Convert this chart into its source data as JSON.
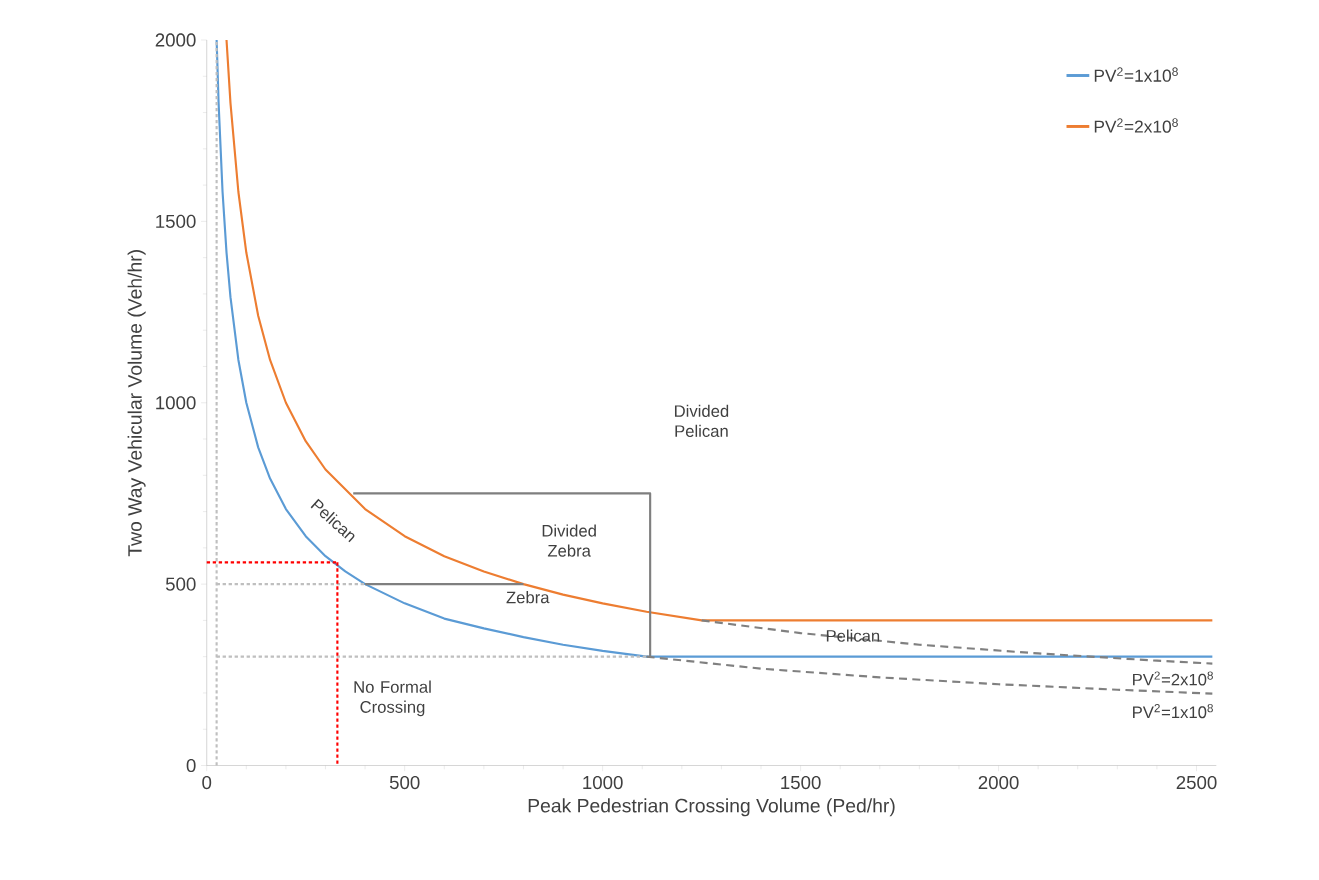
{
  "chart_data": {
    "type": "line",
    "xlabel": "Peak Pedestrian Crossing Volume (Ped/hr)",
    "ylabel": "Two Way Vehicular Volume (Veh/hr)",
    "xlim": [
      0,
      2550
    ],
    "ylim": [
      0,
      2000
    ],
    "xticks": [
      0,
      500,
      1000,
      1500,
      2000,
      2500
    ],
    "yticks": [
      0,
      500,
      1000,
      1500,
      2000
    ],
    "grid": false,
    "legend": "top right",
    "marker": "none",
    "series": [
      {
        "name": "PV$^{2}$=1x10$^{8}$",
        "color": "#5b9bd5",
        "line_style": "solid",
        "x": [
          25,
          30,
          40,
          50,
          60,
          80,
          100,
          130,
          160,
          200,
          250,
          300,
          350,
          400,
          500,
          600,
          700,
          800,
          900,
          1000,
          1111,
          2540
        ],
        "values": [
          2000,
          1826,
          1581,
          1414,
          1291,
          1118,
          1000,
          877,
          791,
          707,
          632,
          577,
          535,
          500,
          447,
          405,
          378,
          354,
          333,
          316,
          300,
          300
        ]
      },
      {
        "name": "PV$^{2}$=2x10$^{8}$",
        "color": "#ed7d31",
        "line_style": "solid",
        "x": [
          50,
          60,
          80,
          100,
          130,
          160,
          200,
          250,
          300,
          400,
          500,
          600,
          700,
          800,
          900,
          1000,
          1111,
          1250,
          2540
        ],
        "values": [
          2000,
          1826,
          1581,
          1414,
          1240,
          1118,
          1000,
          894,
          816,
          707,
          632,
          577,
          535,
          500,
          471,
          447,
          424,
          400,
          400
        ]
      },
      {
        "color": "#808080",
        "line_style": "dashed",
        "x": [
          1111,
          1400,
          1700,
          2000,
          2300,
          2540
        ],
        "values": [
          300,
          267,
          243,
          224,
          209,
          198
        ]
      },
      {
        "color": "#808080",
        "line_style": "dashed",
        "x": [
          1250,
          1500,
          1800,
          2100,
          2400,
          2540
        ],
        "values": [
          400,
          365,
          333,
          309,
          289,
          281
        ]
      },
      {
        "color": "#7f7f7f",
        "line_style": "solid",
        "x": [
          370,
          1120,
          1120
        ],
        "values": [
          750,
          750,
          300
        ]
      },
      {
        "color": "#7f7f7f",
        "line_style": "solid",
        "x": [
          400,
          800
        ],
        "values": [
          500,
          500
        ]
      },
      {
        "color": "#bfbfbf",
        "line_style": "dotted",
        "x": [
          25,
          400
        ],
        "values": [
          500,
          500
        ]
      },
      {
        "color": "#bfbfbf",
        "line_style": "dotted",
        "x": [
          25,
          1111
        ],
        "values": [
          300,
          300
        ]
      },
      {
        "color": "#bfbfbf",
        "line_style": "dotted",
        "x": [
          25,
          25
        ],
        "values": [
          0,
          2000
        ]
      },
      {
        "color": "#ff0000",
        "line_style": "dotted",
        "x": [
          0,
          330
        ],
        "values": [
          560,
          560
        ]
      },
      {
        "color": "#ff0000",
        "line_style": "dotted",
        "x": [
          330,
          330
        ],
        "values": [
          560,
          0
        ]
      }
    ],
    "annotations": [
      "Pelican",
      "Divided Zebra",
      "Zebra",
      "Divided Pelican",
      "Pelican",
      "No Formal Crossing",
      "PV$^{2}$=2x10$^{8}$",
      "PV$^{2}$=1x10$^{8}$"
    ]
  }
}
